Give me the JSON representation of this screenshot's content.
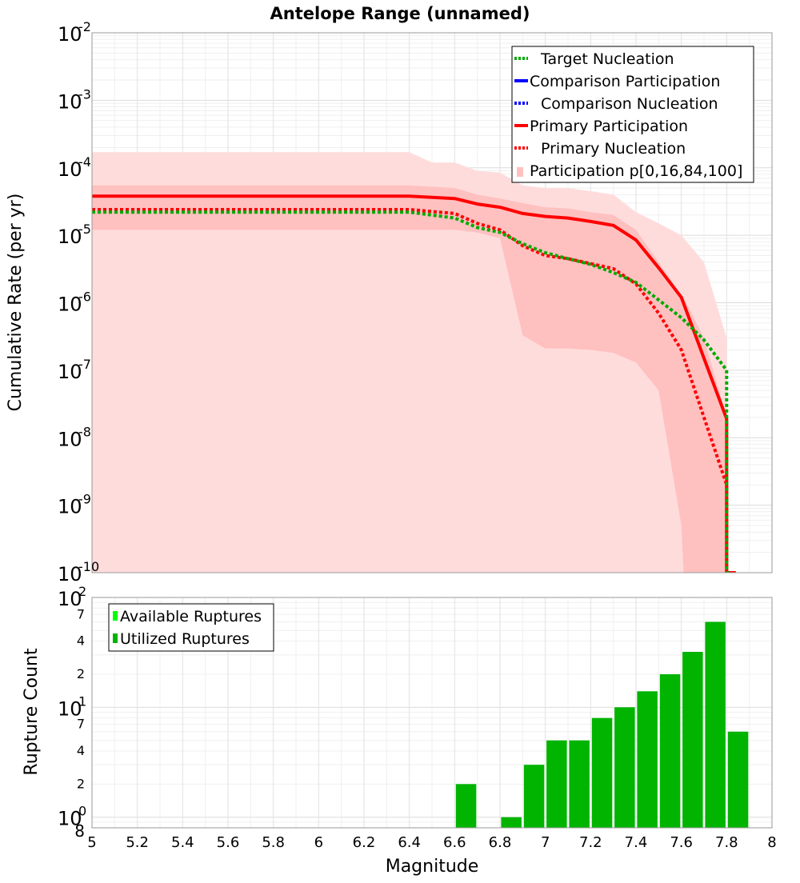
{
  "chart_data": [
    {
      "type": "line",
      "title": "Antelope Range (unnamed)",
      "ylabel": "Cumulative Rate (per yr)",
      "xlabel": "",
      "xlim": [
        5,
        8
      ],
      "ylim": [
        1e-10,
        0.01
      ],
      "yscale": "log",
      "grid": true,
      "legend_position": "top-right",
      "y_tick_labels": [
        {
          "base": "10",
          "exp": "-10"
        },
        {
          "base": "10",
          "exp": "-9"
        },
        {
          "base": "10",
          "exp": "-8"
        },
        {
          "base": "10",
          "exp": "-7"
        },
        {
          "base": "10",
          "exp": "-6"
        },
        {
          "base": "10",
          "exp": "-5"
        },
        {
          "base": "10",
          "exp": "-4"
        },
        {
          "base": "10",
          "exp": "-3"
        },
        {
          "base": "10",
          "exp": "-2"
        }
      ],
      "legend": [
        {
          "label": "Target Nucleation",
          "color": "#00aa00",
          "style": "dotted"
        },
        {
          "label": "Comparison Participation",
          "color": "#0000ff",
          "style": "solid"
        },
        {
          "label": "Comparison Nucleation",
          "color": "#0000ff",
          "style": "dotted"
        },
        {
          "label": "Primary Participation",
          "color": "#ff0000",
          "style": "solid"
        },
        {
          "label": "Primary Nucleation",
          "color": "#ff0000",
          "style": "dotted"
        },
        {
          "label": "Participation p[0,16,84,100]",
          "color": "#ffc0c0",
          "style": "band"
        }
      ],
      "bands": [
        {
          "name": "p0-p100",
          "color": "#ffdcdc",
          "x": [
            5.0,
            6.4,
            6.5,
            6.6,
            6.7,
            6.8,
            6.9,
            7.0,
            7.1,
            7.2,
            7.3,
            7.4,
            7.5,
            7.6,
            7.7,
            7.8
          ],
          "upper": [
            0.00017,
            0.00017,
            0.00012,
            0.00012,
            9e-05,
            8.5e-05,
            5.5e-05,
            5e-05,
            5e-05,
            4.5e-05,
            4e-05,
            2.2e-05,
            1.5e-05,
            1e-05,
            4e-06,
            3e-07
          ],
          "lower": [
            1e-10,
            1e-10,
            1e-10,
            1e-10,
            1e-10,
            1e-10,
            1e-10,
            1e-10,
            1e-10,
            1e-10,
            1e-10,
            1e-10,
            1e-10,
            1e-10,
            1e-10,
            1e-10
          ]
        },
        {
          "name": "p16-p84",
          "color": "#ffc0c0",
          "x": [
            5.0,
            6.4,
            6.6,
            6.7,
            6.8,
            6.9,
            7.0,
            7.1,
            7.2,
            7.3,
            7.4,
            7.5,
            7.6,
            7.61,
            7.7,
            7.8
          ],
          "upper": [
            5.5e-05,
            5.5e-05,
            5e-05,
            4e-05,
            3.5e-05,
            3e-05,
            2.6e-05,
            2.5e-05,
            2.2e-05,
            2e-05,
            1.2e-05,
            4e-06,
            1.3e-06,
            1.2e-06,
            3e-07,
            2e-08
          ],
          "lower": [
            1.2e-05,
            1.2e-05,
            1.2e-05,
            1.1e-05,
            9e-06,
            3.3e-07,
            2.1e-07,
            2.1e-07,
            2e-07,
            1.8e-07,
            1.3e-07,
            5e-08,
            5e-10,
            1e-10,
            1e-10,
            1e-10
          ]
        }
      ],
      "series": [
        {
          "name": "Primary Participation",
          "color": "#ff0000",
          "style": "solid",
          "x": [
            5.0,
            6.4,
            6.6,
            6.7,
            6.8,
            6.9,
            7.0,
            7.1,
            7.2,
            7.3,
            7.4,
            7.5,
            7.6,
            7.7,
            7.8,
            7.8,
            7.84
          ],
          "y": [
            3.8e-05,
            3.8e-05,
            3.5e-05,
            2.9e-05,
            2.6e-05,
            2.1e-05,
            1.9e-05,
            1.8e-05,
            1.6e-05,
            1.4e-05,
            8.5e-06,
            3.3e-06,
            1.2e-06,
            1.5e-07,
            1.9e-08,
            1e-10,
            1e-10
          ]
        },
        {
          "name": "Primary Nucleation",
          "color": "#ff0000",
          "style": "dotted",
          "x": [
            5.0,
            6.4,
            6.6,
            6.7,
            6.8,
            6.9,
            7.0,
            7.1,
            7.2,
            7.3,
            7.4,
            7.5,
            7.6,
            7.7,
            7.8,
            7.8,
            7.84
          ],
          "y": [
            2.4e-05,
            2.4e-05,
            2.1e-05,
            1.5e-05,
            1.2e-05,
            7e-06,
            5e-06,
            4.5e-06,
            3.8e-06,
            3.2e-06,
            1.9e-06,
            7e-07,
            2e-07,
            2e-08,
            2e-09,
            1e-10,
            1e-10
          ]
        },
        {
          "name": "Target Nucleation",
          "color": "#00aa00",
          "style": "dotted",
          "x": [
            5.0,
            6.4,
            6.6,
            6.7,
            6.8,
            6.9,
            7.0,
            7.1,
            7.2,
            7.3,
            7.4,
            7.5,
            7.6,
            7.7,
            7.8,
            7.8,
            7.82
          ],
          "y": [
            2.2e-05,
            2.2e-05,
            1.8e-05,
            1.3e-05,
            1.1e-05,
            7.5e-06,
            5.5e-06,
            4.5e-06,
            3.7e-06,
            2.8e-06,
            2e-06,
            1.1e-06,
            6e-07,
            2.8e-07,
            1e-07,
            1e-10,
            1e-10
          ]
        }
      ]
    },
    {
      "type": "bar",
      "ylabel": "Rupture Count",
      "xlabel": "Magnitude",
      "xlim": [
        5,
        8
      ],
      "ylim": [
        0.8,
        100
      ],
      "yscale": "log",
      "grid": true,
      "legend_position": "top-left",
      "x_ticks": [
        5,
        5.2,
        5.4,
        5.6,
        5.8,
        6,
        6.2,
        6.4,
        6.6,
        6.8,
        7,
        7.2,
        7.4,
        7.6,
        7.8,
        8
      ],
      "x_tick_labels": [
        "5",
        "5.2",
        "5.4",
        "5.6",
        "5.8",
        "6",
        "6.2",
        "6.4",
        "6.6",
        "6.8",
        "7",
        "7.2",
        "7.4",
        "7.6",
        "7.8",
        "8"
      ],
      "y_major_ticks": [
        {
          "value": 1,
          "base": "10",
          "exp": "0"
        },
        {
          "value": 10,
          "base": "10",
          "exp": "1"
        },
        {
          "value": 100,
          "base": "10",
          "exp": "2"
        }
      ],
      "y_minor_ticks": [
        {
          "value": 0.8,
          "label": "8"
        },
        {
          "value": 2,
          "label": "2"
        },
        {
          "value": 4,
          "label": "4"
        },
        {
          "value": 7,
          "label": "7"
        },
        {
          "value": 20,
          "label": "2"
        },
        {
          "value": 40,
          "label": "4"
        },
        {
          "value": 70,
          "label": "7"
        }
      ],
      "legend": [
        {
          "label": "Available Ruptures",
          "color": "#00ff00"
        },
        {
          "label": "Utilized Ruptures",
          "color": "#00b400"
        }
      ],
      "bar_width": 0.09,
      "series": [
        {
          "name": "Utilized Ruptures",
          "color": "#00b400",
          "x": [
            6.65,
            6.85,
            6.95,
            7.05,
            7.15,
            7.25,
            7.35,
            7.45,
            7.55,
            7.65,
            7.75,
            7.85
          ],
          "values": [
            2,
            1,
            3,
            5,
            5,
            8,
            10,
            14,
            20,
            32,
            60,
            6
          ]
        }
      ]
    }
  ]
}
